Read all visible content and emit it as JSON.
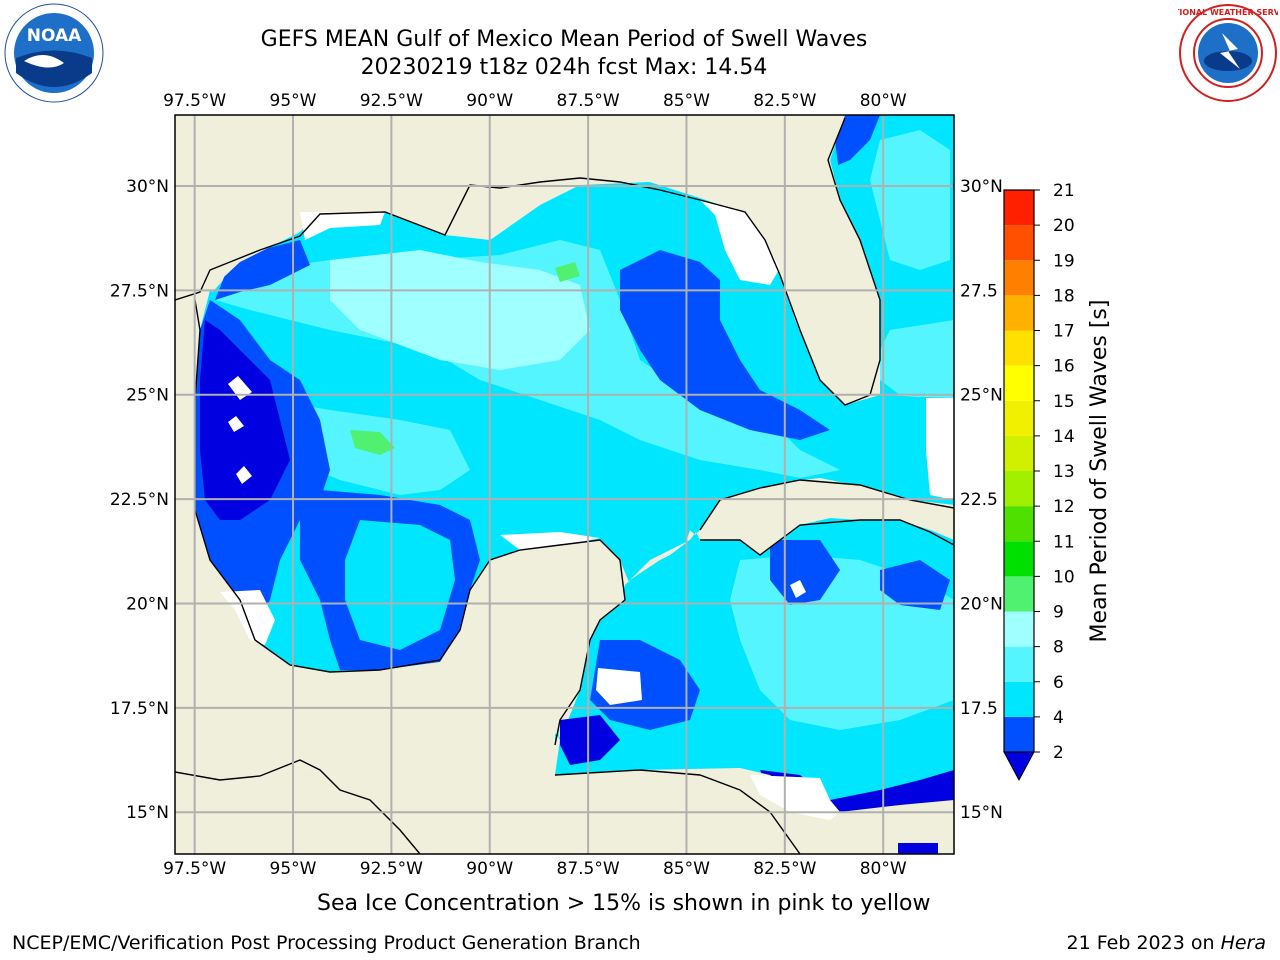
{
  "title": {
    "line1": "GEFS MEAN Gulf of Mexico Mean Period of Swell Waves",
    "line2": "20230219 t18z 024h fcst   Max: 14.54"
  },
  "logos": {
    "left": {
      "icon": "noaa-logo-icon",
      "lettering": "NOAA"
    },
    "right": {
      "icon": "nws-logo-icon",
      "lettering": "NATIONAL WEATHER SERVICE"
    }
  },
  "map": {
    "lon_ticks": [
      "97.5°W",
      "95°W",
      "92.5°W",
      "90°W",
      "87.5°W",
      "85°W",
      "82.5°W",
      "80°W"
    ],
    "lon_values": [
      -97.5,
      -95,
      -92.5,
      -90,
      -87.5,
      -85,
      -82.5,
      -80
    ],
    "lat_ticks_left": [
      "30°N",
      "27.5°N",
      "25°N",
      "22.5°N",
      "20°N",
      "17.5°N",
      "15°N"
    ],
    "lat_ticks_right": [
      "30°N",
      "27.5",
      "25°N",
      "22.5",
      "20°N",
      "17.5",
      "15°N"
    ],
    "lat_values": [
      30,
      27.5,
      25,
      22.5,
      20,
      17.5,
      15
    ],
    "extent": {
      "lon": [
        -98,
        -78.2
      ],
      "lat": [
        14,
        31.7
      ]
    },
    "colors": {
      "land": "#efefdc",
      "ocean_missing": "#ffffff",
      "grid": "#b0b0b0"
    }
  },
  "colorbar": {
    "label": "Mean Period of Swell Waves [s]",
    "levels": [
      "2",
      "4",
      "6",
      "8",
      "9",
      "10",
      "11",
      "12",
      "13",
      "14",
      "15",
      "16",
      "17",
      "18",
      "19",
      "20",
      "21"
    ],
    "colors": [
      "#0050ff",
      "#00e6ff",
      "#55f5ff",
      "#a0ffff",
      "#50f070",
      "#00e000",
      "#50e000",
      "#a0f000",
      "#d0f000",
      "#f0f000",
      "#ffff00",
      "#ffe000",
      "#ffb000",
      "#ff8000",
      "#ff5000",
      "#ff2000",
      "#ff0000"
    ],
    "extend_color": "#0000e0"
  },
  "footer": {
    "note": "Sea Ice Concentration > 15% is shown in pink to yellow",
    "credit": "NCEP/EMC/Verification Post Processing Product Generation Branch",
    "date": "21 Feb 2023 on",
    "host": "Hera"
  }
}
